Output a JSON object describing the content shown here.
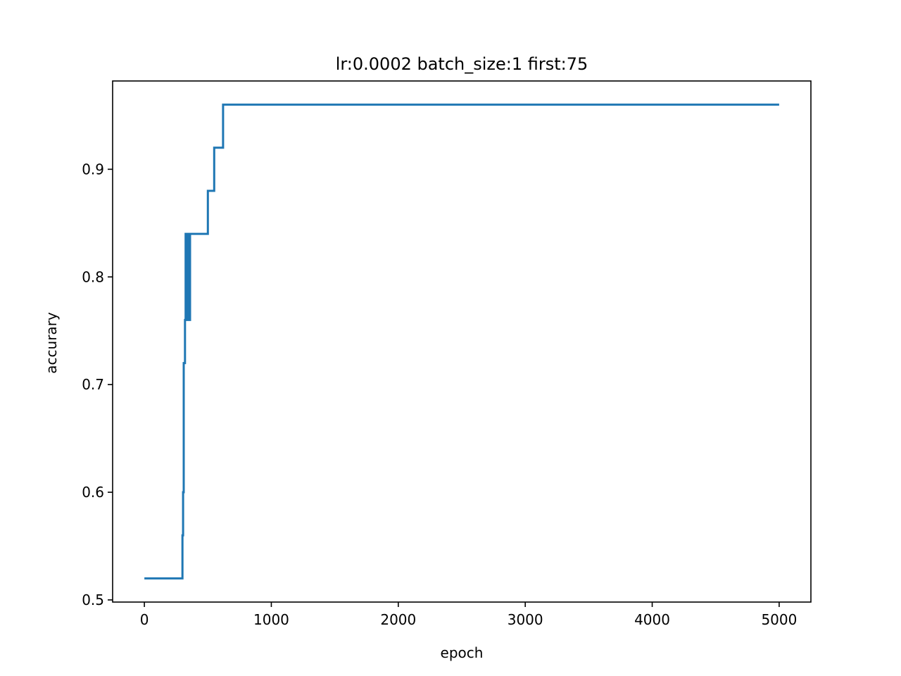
{
  "chart_data": {
    "type": "line",
    "title": "lr:0.0002 batch_size:1 first:75",
    "xlabel": "epoch",
    "ylabel": "accurary",
    "xlim": [
      -250,
      5250
    ],
    "ylim": [
      0.498,
      0.982
    ],
    "x_ticks": [
      0,
      1000,
      2000,
      3000,
      4000,
      5000
    ],
    "x_tick_labels": [
      "0",
      "1000",
      "2000",
      "3000",
      "4000",
      "5000"
    ],
    "y_ticks": [
      0.5,
      0.6,
      0.7,
      0.8,
      0.9
    ],
    "y_tick_labels": [
      "0.5",
      "0.6",
      "0.7",
      "0.8",
      "0.9"
    ],
    "grid": false,
    "series": [
      {
        "color": "#1f77b4",
        "step": "post",
        "x": [
          0,
          300,
          305,
          310,
          320,
          325,
          330,
          335,
          340,
          345,
          350,
          360,
          500,
          550,
          620,
          5000
        ],
        "y": [
          0.52,
          0.56,
          0.6,
          0.72,
          0.76,
          0.84,
          0.76,
          0.84,
          0.76,
          0.84,
          0.76,
          0.84,
          0.88,
          0.92,
          0.96,
          0.96
        ]
      }
    ]
  }
}
